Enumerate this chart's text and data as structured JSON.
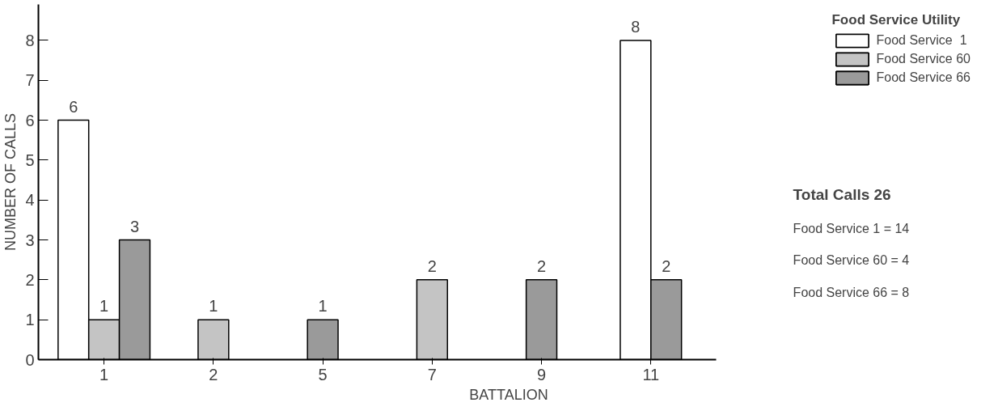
{
  "chart_data": {
    "type": "bar",
    "xlabel": "BATTALION",
    "ylabel": "NUMBER OF CALLS",
    "legend_title": "Food Service Utility",
    "categories": [
      "1",
      "2",
      "5",
      "7",
      "9",
      "11"
    ],
    "series": [
      {
        "name": "Food Service  1",
        "color": "#ffffff",
        "values": [
          6,
          null,
          null,
          null,
          null,
          8
        ]
      },
      {
        "name": "Food Service 60",
        "color": "#c4c4c4",
        "values": [
          1,
          1,
          null,
          2,
          null,
          null
        ]
      },
      {
        "name": "Food Service 66",
        "color": "#9a9a9a",
        "values": [
          3,
          null,
          1,
          null,
          2,
          2
        ]
      }
    ],
    "ylim": [
      0,
      8.9
    ],
    "yticks": [
      0,
      1,
      2,
      3,
      4,
      5,
      6,
      7,
      8
    ],
    "grid": false,
    "legend": "top right",
    "data_labels": true,
    "annotations": [
      "Total Calls        26",
      "Food Service  1 = 14",
      "Food Service 60 =  4",
      "Food Service 66 =  8"
    ]
  }
}
